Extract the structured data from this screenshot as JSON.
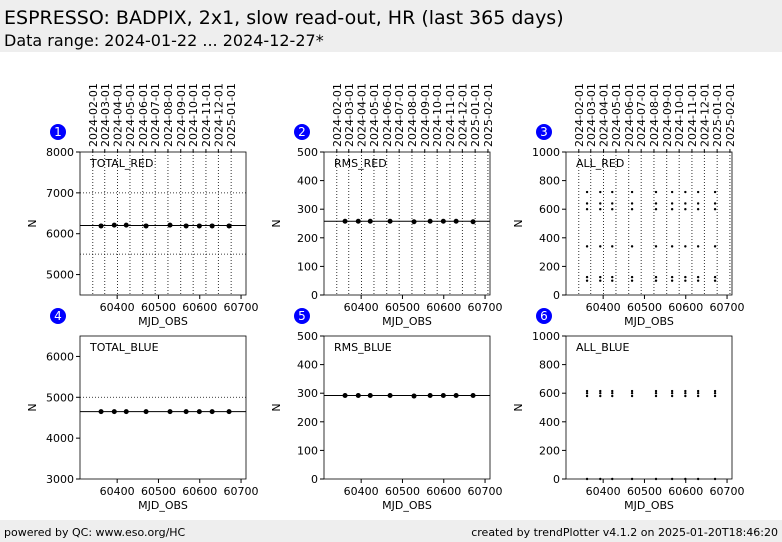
{
  "header": {
    "title": "ESPRESSO: BADPIX, 2x1, slow read-out, HR (last 365 days)",
    "subtitle": "Data range: 2024-01-22 ... 2024-12-27*"
  },
  "footer": {
    "left": "powered by QC: www.eso.org/HC",
    "right": "created by trendPlotter v4.1.2 on 2025-01-20T18:46:20"
  },
  "chart_data": [
    {
      "type": "scatter",
      "panel": "1",
      "label": "TOTAL_RED",
      "xlabel": "MJD_OBS",
      "ylabel": "N",
      "color": "#000000",
      "marker_size": 2.5,
      "x": [
        60361,
        60393,
        60422,
        60470,
        60528,
        60567,
        60599,
        60630,
        60671
      ],
      "values": [
        6190,
        6210,
        6210,
        6190,
        6210,
        6190,
        6190,
        6190,
        6190
      ],
      "reference": 6200,
      "thresholds": [
        5500,
        7000
      ],
      "xlim": [
        60310,
        60712
      ],
      "ylim": [
        4500,
        8000
      ],
      "xticks": [
        60400,
        60500,
        60600,
        60700
      ],
      "yticks": [
        5000,
        6000,
        7000,
        8000
      ],
      "x2ticks": [
        {
          "value": 60341,
          "label": "2024-02-01"
        },
        {
          "value": 60370,
          "label": "2024-03-01"
        },
        {
          "value": 60401,
          "label": "2024-04-01"
        },
        {
          "value": 60431,
          "label": "2024-05-01"
        },
        {
          "value": 60462,
          "label": "2024-06-01"
        },
        {
          "value": 60492,
          "label": "2024-07-01"
        },
        {
          "value": 60523,
          "label": "2024-08-01"
        },
        {
          "value": 60554,
          "label": "2024-09-01"
        },
        {
          "value": 60584,
          "label": "2024-10-01"
        },
        {
          "value": 60615,
          "label": "2024-11-01"
        },
        {
          "value": 60645,
          "label": "2024-12-01"
        },
        {
          "value": 60676,
          "label": "2025-01-01"
        }
      ]
    },
    {
      "type": "scatter",
      "panel": "2",
      "label": "RMS_RED",
      "xlabel": "MJD_OBS",
      "ylabel": "N",
      "color": "#000000",
      "marker_size": 2.5,
      "x": [
        60361,
        60393,
        60422,
        60470,
        60528,
        60567,
        60599,
        60630,
        60671
      ],
      "values": [
        258,
        258,
        258,
        258,
        256,
        258,
        258,
        258,
        256
      ],
      "reference": 258,
      "xlim": [
        60310,
        60712
      ],
      "ylim": [
        0,
        500
      ],
      "xticks": [
        60400,
        60500,
        60600,
        60700
      ],
      "yticks": [
        0,
        100,
        200,
        300,
        400,
        500
      ],
      "x2ticks": [
        {
          "value": 60341,
          "label": "2024-02-01"
        },
        {
          "value": 60370,
          "label": "2024-03-01"
        },
        {
          "value": 60401,
          "label": "2024-04-01"
        },
        {
          "value": 60431,
          "label": "2024-05-01"
        },
        {
          "value": 60462,
          "label": "2024-06-01"
        },
        {
          "value": 60492,
          "label": "2024-07-01"
        },
        {
          "value": 60523,
          "label": "2024-08-01"
        },
        {
          "value": 60554,
          "label": "2024-09-01"
        },
        {
          "value": 60584,
          "label": "2024-10-01"
        },
        {
          "value": 60615,
          "label": "2024-11-01"
        },
        {
          "value": 60645,
          "label": "2024-12-01"
        },
        {
          "value": 60676,
          "label": "2025-01-01"
        },
        {
          "value": 60707,
          "label": "2025-02-01"
        }
      ]
    },
    {
      "type": "scatter",
      "panel": "3",
      "label": "ALL_RED",
      "xlabel": "MJD_OBS",
      "ylabel": "N",
      "color": "#000000",
      "marker_size": 1.2,
      "x": [
        60361,
        60361,
        60361,
        60361,
        60361,
        60361,
        60393,
        60393,
        60393,
        60393,
        60393,
        60393,
        60422,
        60422,
        60422,
        60422,
        60422,
        60422,
        60470,
        60470,
        60470,
        60470,
        60470,
        60470,
        60528,
        60528,
        60528,
        60528,
        60528,
        60528,
        60567,
        60567,
        60567,
        60567,
        60567,
        60567,
        60599,
        60599,
        60599,
        60599,
        60599,
        60599,
        60630,
        60630,
        60630,
        60630,
        60630,
        60630,
        60671,
        60671,
        60671,
        60671,
        60671,
        60671
      ],
      "values": [
        100,
        125,
        340,
        600,
        640,
        720,
        100,
        125,
        340,
        600,
        640,
        720,
        100,
        125,
        340,
        600,
        640,
        720,
        100,
        125,
        340,
        600,
        640,
        720,
        100,
        125,
        340,
        600,
        640,
        720,
        100,
        125,
        340,
        600,
        640,
        720,
        100,
        125,
        340,
        600,
        640,
        720,
        100,
        125,
        340,
        600,
        640,
        720,
        100,
        125,
        340,
        600,
        640,
        720
      ],
      "xlim": [
        60310,
        60712
      ],
      "ylim": [
        0,
        1000
      ],
      "xticks": [
        60400,
        60500,
        60600,
        60700
      ],
      "yticks": [
        0,
        200,
        400,
        600,
        800,
        1000
      ],
      "x2ticks": [
        {
          "value": 60341,
          "label": "2024-02-01"
        },
        {
          "value": 60370,
          "label": "2024-03-01"
        },
        {
          "value": 60401,
          "label": "2024-04-01"
        },
        {
          "value": 60431,
          "label": "2024-05-01"
        },
        {
          "value": 60462,
          "label": "2024-06-01"
        },
        {
          "value": 60492,
          "label": "2024-07-01"
        },
        {
          "value": 60523,
          "label": "2024-08-01"
        },
        {
          "value": 60554,
          "label": "2024-09-01"
        },
        {
          "value": 60584,
          "label": "2024-10-01"
        },
        {
          "value": 60615,
          "label": "2024-11-01"
        },
        {
          "value": 60645,
          "label": "2024-12-01"
        },
        {
          "value": 60676,
          "label": "2025-01-01"
        },
        {
          "value": 60707,
          "label": "2025-02-01"
        }
      ]
    },
    {
      "type": "scatter",
      "panel": "4",
      "label": "TOTAL_BLUE",
      "xlabel": "MJD_OBS",
      "ylabel": "N",
      "color": "#000000",
      "marker_size": 2.5,
      "x": [
        60361,
        60393,
        60422,
        60470,
        60528,
        60567,
        60599,
        60630,
        60671
      ],
      "values": [
        4650,
        4650,
        4650,
        4650,
        4650,
        4650,
        4650,
        4650,
        4650
      ],
      "reference": 4650,
      "thresholds": [
        5000
      ],
      "xlim": [
        60310,
        60712
      ],
      "ylim": [
        3000,
        6500
      ],
      "xticks": [
        60400,
        60500,
        60600,
        60700
      ],
      "yticks": [
        3000,
        4000,
        5000,
        6000
      ]
    },
    {
      "type": "scatter",
      "panel": "5",
      "label": "RMS_BLUE",
      "xlabel": "MJD_OBS",
      "ylabel": "N",
      "color": "#000000",
      "marker_size": 2.5,
      "x": [
        60361,
        60393,
        60422,
        60470,
        60528,
        60567,
        60599,
        60630,
        60671
      ],
      "values": [
        292,
        292,
        292,
        292,
        290,
        292,
        292,
        292,
        292
      ],
      "reference": 292,
      "xlim": [
        60310,
        60712
      ],
      "ylim": [
        0,
        500
      ],
      "xticks": [
        60400,
        60500,
        60600,
        60700
      ],
      "yticks": [
        0,
        100,
        200,
        300,
        400,
        500
      ]
    },
    {
      "type": "scatter",
      "panel": "6",
      "label": "ALL_BLUE",
      "xlabel": "MJD_OBS",
      "ylabel": "N",
      "color": "#000000",
      "marker_size": 1.2,
      "x": [
        60361,
        60361,
        60361,
        60361,
        60393,
        60393,
        60393,
        60393,
        60422,
        60422,
        60422,
        60422,
        60470,
        60470,
        60470,
        60470,
        60528,
        60528,
        60528,
        60528,
        60567,
        60567,
        60567,
        60567,
        60599,
        60599,
        60599,
        60599,
        60630,
        60630,
        60630,
        60630,
        60671,
        60671,
        60671,
        60671
      ],
      "values": [
        0,
        580,
        600,
        615,
        0,
        580,
        600,
        615,
        0,
        580,
        600,
        615,
        0,
        580,
        600,
        615,
        0,
        580,
        600,
        615,
        0,
        580,
        600,
        615,
        0,
        580,
        600,
        615,
        0,
        580,
        600,
        615,
        0,
        580,
        600,
        615
      ],
      "xlim": [
        60310,
        60712
      ],
      "ylim": [
        0,
        1000
      ],
      "xticks": [
        60400,
        60500,
        60600,
        60700
      ],
      "yticks": [
        0,
        200,
        400,
        600,
        800,
        1000
      ]
    }
  ]
}
